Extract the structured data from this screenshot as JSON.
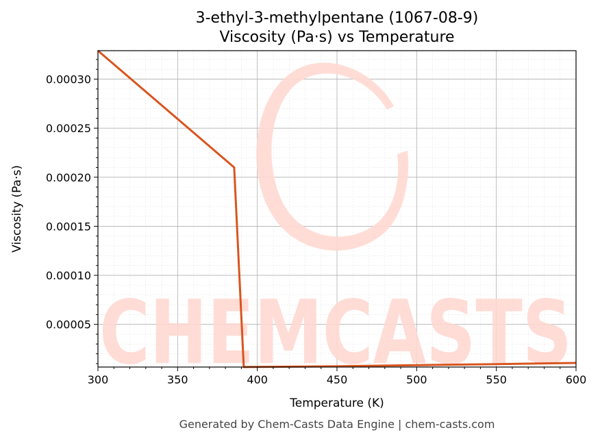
{
  "chart_data": {
    "type": "line",
    "title_line1": "3-ethyl-3-methylpentane (1067-08-9)",
    "title_line2": "Viscosity (Pa·s) vs Temperature",
    "xlabel": "Temperature (K)",
    "ylabel": "Viscosity (Pa·s)",
    "xlim": [
      300,
      600
    ],
    "ylim": [
      6.5e-06,
      0.000329
    ],
    "x_ticks": [
      300,
      350,
      400,
      450,
      500,
      550,
      600
    ],
    "x_tick_labels": [
      "300",
      "350",
      "400",
      "450",
      "500",
      "550",
      "600"
    ],
    "y_ticks": [
      5e-05,
      0.0001,
      0.00015,
      0.0002,
      0.00025,
      0.0003
    ],
    "y_tick_labels": [
      "0.00005",
      "0.00010",
      "0.00015",
      "0.00020",
      "0.00025",
      "0.00030"
    ],
    "grid": true,
    "series": [
      {
        "color": "#d9541e",
        "x": [
          300,
          385.5,
          391.5,
          450,
          500,
          550,
          600
        ],
        "y": [
          0.000329,
          0.00021,
          6.5e-06,
          7.3e-06,
          8.4e-06,
          9.5e-06,
          1.07e-05
        ]
      }
    ]
  },
  "watermark": {
    "text": "CHEMCASTS",
    "color": "#ffd9d2"
  },
  "footer": {
    "text": "Generated by Chem-Casts Data Engine | chem-casts.com"
  }
}
